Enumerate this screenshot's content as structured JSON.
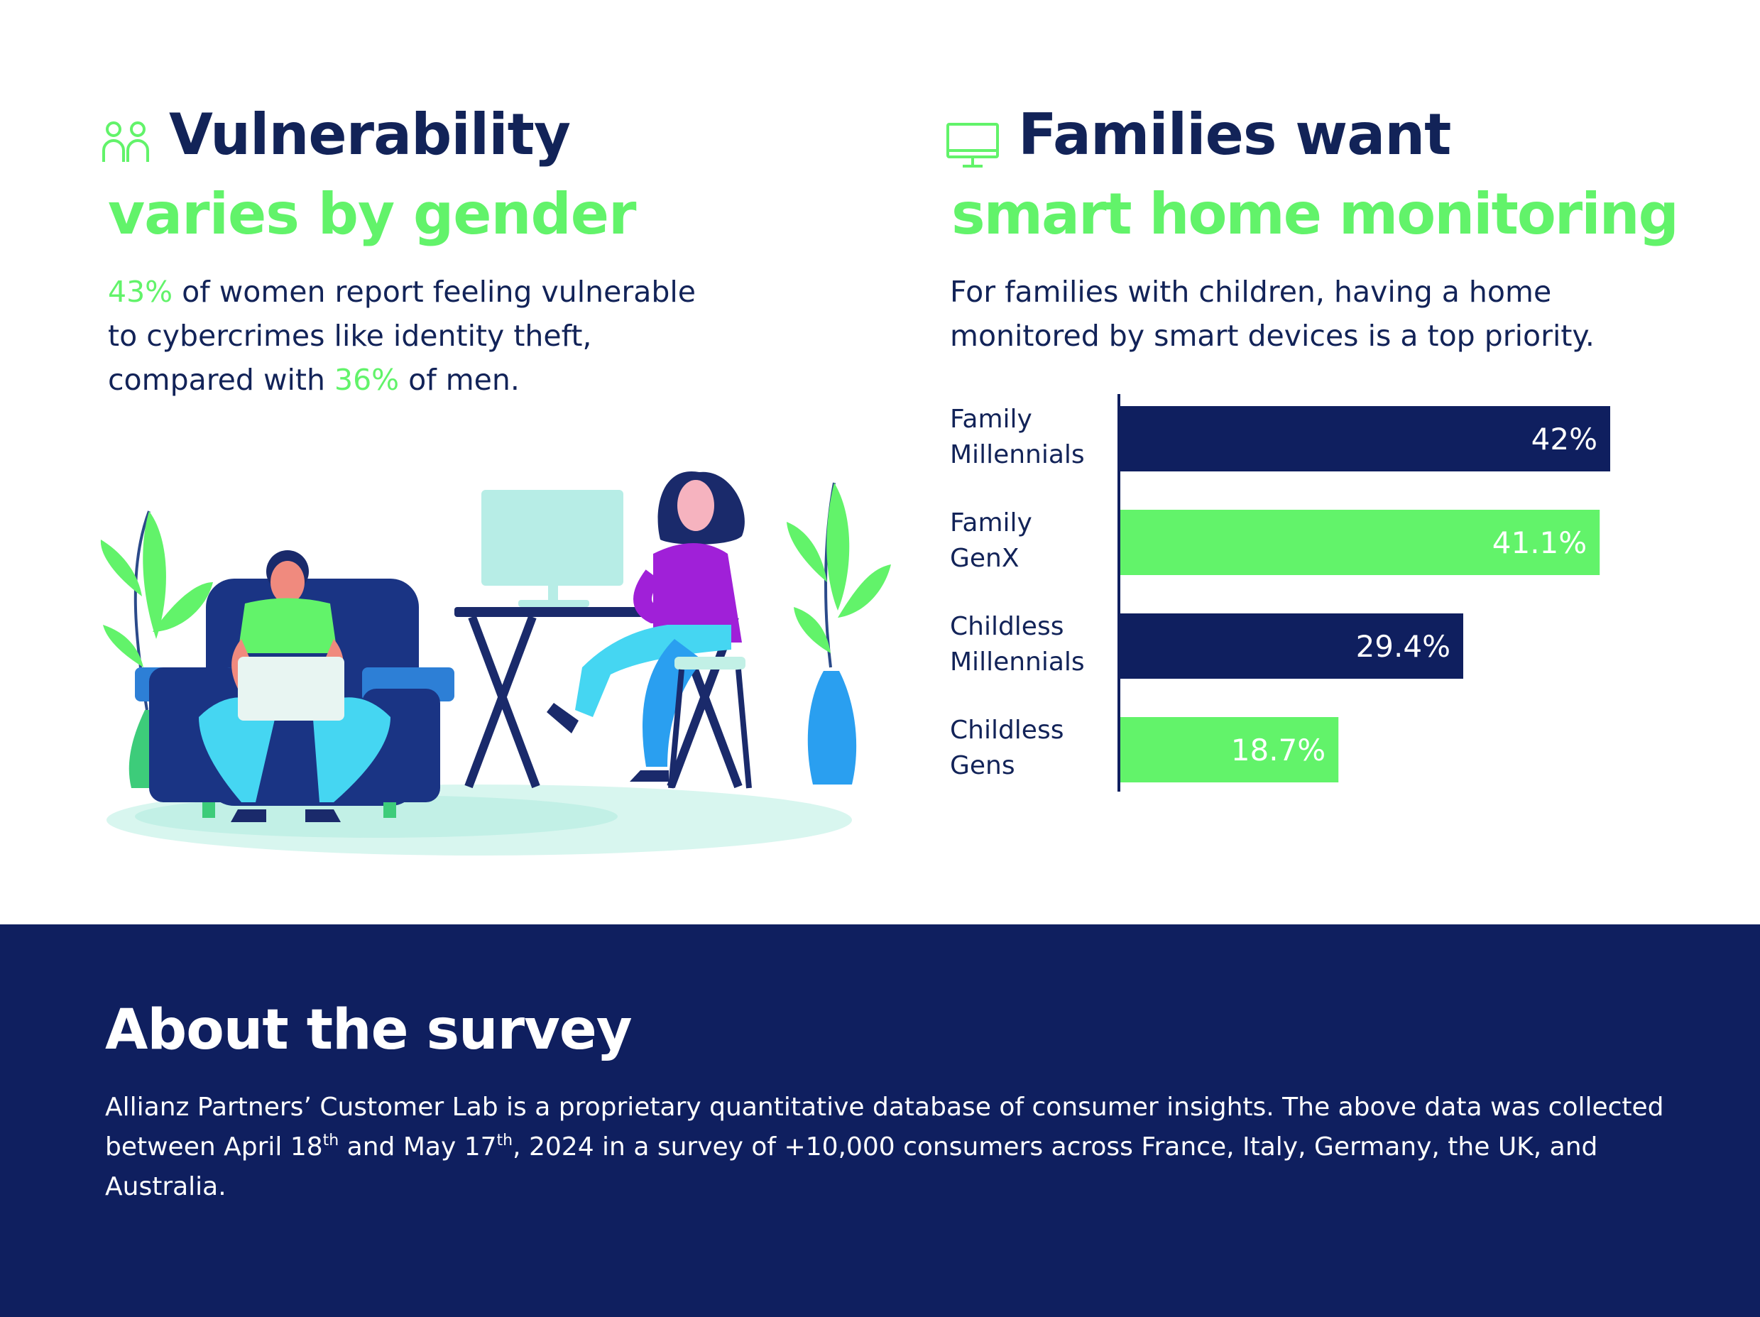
{
  "left": {
    "title_line1": "Vulnerability",
    "title_line2": "varies by gender",
    "icon": "people-icon",
    "body": {
      "women_pct": "43%",
      "part1": " of women report feeling vulnerable to cybercrimes like identity theft, compared with ",
      "men_pct": "36%",
      "part2": " of men."
    }
  },
  "right": {
    "title_line1": "Families want",
    "title_line2": "smart home monitoring",
    "icon": "monitor-icon",
    "body": "For families with children, having a home monitored by smart devices is a top priority."
  },
  "chart_data": {
    "type": "bar",
    "orientation": "horizontal",
    "categories": [
      [
        "Family",
        "Millennials"
      ],
      [
        "Family",
        "GenX"
      ],
      [
        "Childless",
        "Millennials"
      ],
      [
        "Childless",
        "Gens"
      ]
    ],
    "values": [
      42,
      41.1,
      29.4,
      18.7
    ],
    "value_labels": [
      "42%",
      "41.1%",
      "29.4%",
      "18.7%"
    ],
    "colors": [
      "#0f1f5f",
      "#62f36a",
      "#0f1f5f",
      "#62f36a"
    ],
    "xlim": [
      0,
      42
    ],
    "title": "",
    "xlabel": "",
    "ylabel": ""
  },
  "footer": {
    "title": "About the survey",
    "body_part1": "Allianz Partners’ Customer Lab is a proprietary quantitative database of consumer insights. The above data was collected between April 18",
    "sup1": "th",
    "body_part2": " and May 17",
    "sup2": "th",
    "body_part3": ", 2024 in a survey of +10,000 consumers across France, Italy, Germany, the UK, and Australia."
  },
  "colors": {
    "navy": "#0f1f5f",
    "green": "#62f36a",
    "text_dark": "#122358"
  }
}
